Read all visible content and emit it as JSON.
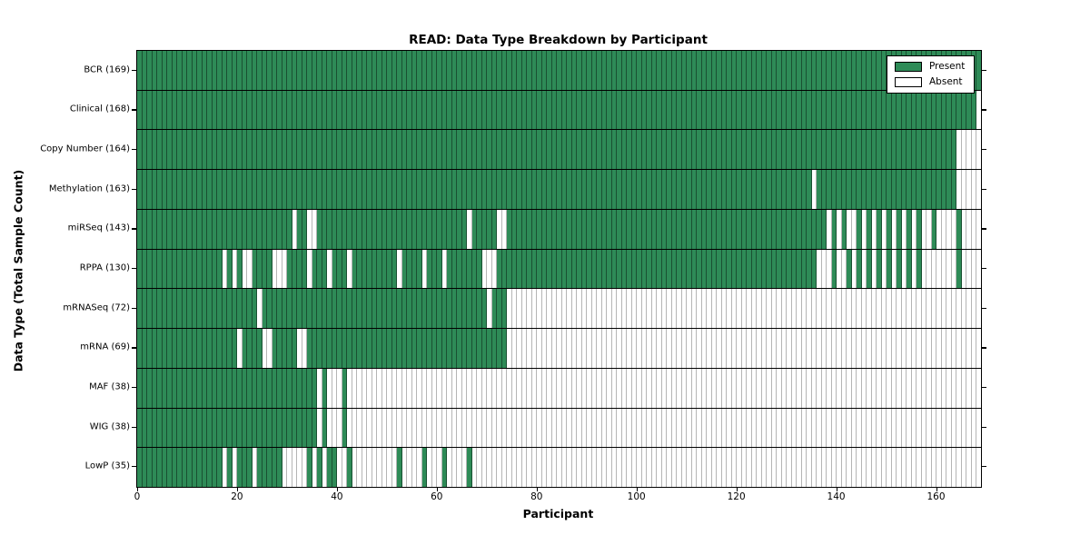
{
  "title": "READ: Data Type Breakdown by Participant",
  "xlabel": "Participant",
  "ylabel": "Data Type (Total Sample Count)",
  "legend": {
    "present_label": "Present",
    "absent_label": "Absent"
  },
  "colors": {
    "present": "#2E8B57",
    "absent": "#FFFFFF",
    "grid_on_green": "rgba(0,0,0,0.42)",
    "grid_on_white": "#B5B5B5",
    "spine": "#000000"
  },
  "chart_data": {
    "type": "heatmap",
    "subtype": "presence-absence-matrix",
    "n_participants": 169,
    "xlim": [
      0,
      169
    ],
    "x_ticks": [
      0,
      20,
      40,
      60,
      80,
      100,
      120,
      140,
      160
    ],
    "legend_entries": [
      "Present",
      "Absent"
    ],
    "legend_position": "upper right",
    "grid": true,
    "rows": [
      {
        "name": "BCR",
        "label": "BCR (169)",
        "count": 169,
        "absent_ranges": []
      },
      {
        "name": "Clinical",
        "label": "Clinical (168)",
        "count": 168,
        "absent_ranges": [
          [
            168,
            168
          ]
        ]
      },
      {
        "name": "CopyNumber",
        "label": "Copy Number (164)",
        "count": 164,
        "absent_ranges": [
          [
            164,
            168
          ]
        ]
      },
      {
        "name": "Methylation",
        "label": "Methylation (163)",
        "count": 163,
        "absent_ranges": [
          [
            135,
            135
          ],
          [
            164,
            168
          ]
        ]
      },
      {
        "name": "miRSeq",
        "label": "miRSeq (143)",
        "count": 143,
        "absent_ranges": [
          [
            31,
            31
          ],
          [
            34,
            35
          ],
          [
            66,
            66
          ],
          [
            72,
            73
          ],
          [
            138,
            138
          ],
          [
            140,
            140
          ],
          [
            142,
            143
          ],
          [
            145,
            145
          ],
          [
            147,
            147
          ],
          [
            149,
            149
          ],
          [
            151,
            151
          ],
          [
            153,
            153
          ],
          [
            155,
            155
          ],
          [
            157,
            158
          ],
          [
            160,
            163
          ],
          [
            165,
            168
          ]
        ]
      },
      {
        "name": "RPPA",
        "label": "RPPA (130)",
        "count": 130,
        "absent_ranges": [
          [
            17,
            17
          ],
          [
            19,
            19
          ],
          [
            21,
            22
          ],
          [
            27,
            29
          ],
          [
            34,
            34
          ],
          [
            38,
            38
          ],
          [
            42,
            42
          ],
          [
            52,
            52
          ],
          [
            57,
            57
          ],
          [
            61,
            61
          ],
          [
            69,
            71
          ],
          [
            136,
            138
          ],
          [
            140,
            141
          ],
          [
            143,
            143
          ],
          [
            145,
            145
          ],
          [
            147,
            147
          ],
          [
            149,
            149
          ],
          [
            151,
            151
          ],
          [
            153,
            153
          ],
          [
            155,
            155
          ],
          [
            157,
            163
          ],
          [
            165,
            168
          ]
        ]
      },
      {
        "name": "mRNASeq",
        "label": "mRNASeq (72)",
        "count": 72,
        "absent_ranges": [
          [
            24,
            24
          ],
          [
            70,
            70
          ],
          [
            74,
            168
          ]
        ]
      },
      {
        "name": "mRNA",
        "label": "mRNA (69)",
        "count": 69,
        "absent_ranges": [
          [
            20,
            20
          ],
          [
            25,
            26
          ],
          [
            32,
            33
          ],
          [
            74,
            168
          ]
        ]
      },
      {
        "name": "MAF",
        "label": "MAF (38)",
        "count": 38,
        "absent_ranges": [
          [
            36,
            36
          ],
          [
            38,
            40
          ],
          [
            42,
            168
          ]
        ]
      },
      {
        "name": "WIG",
        "label": "WIG (38)",
        "count": 38,
        "absent_ranges": [
          [
            36,
            36
          ],
          [
            38,
            40
          ],
          [
            42,
            168
          ]
        ]
      },
      {
        "name": "LowP",
        "label": "LowP (35)",
        "count": 35,
        "absent_ranges": [
          [
            17,
            17
          ],
          [
            19,
            19
          ],
          [
            23,
            23
          ],
          [
            29,
            33
          ],
          [
            35,
            35
          ],
          [
            37,
            37
          ],
          [
            40,
            41
          ],
          [
            43,
            51
          ],
          [
            53,
            56
          ],
          [
            58,
            60
          ],
          [
            62,
            65
          ],
          [
            67,
            168
          ]
        ]
      }
    ]
  }
}
